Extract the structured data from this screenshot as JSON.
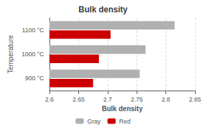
{
  "chart_data": {
    "type": "bar",
    "orientation": "horizontal",
    "title": "Bulk density",
    "xlabel": "Bulk density",
    "ylabel": "Temperature",
    "categories": [
      "900 °C",
      "1000 °C",
      "1100 °C"
    ],
    "series": [
      {
        "name": "Gray",
        "color": "#b0b0b0",
        "values": [
          2.755,
          2.765,
          2.815
        ]
      },
      {
        "name": "Red",
        "color": "#cc0000",
        "values": [
          2.675,
          2.685,
          2.705
        ]
      }
    ],
    "xlim": [
      2.6,
      2.85
    ],
    "xticks": [
      2.6,
      2.65,
      2.7,
      2.75,
      2.8,
      2.85
    ],
    "grid": true,
    "legend": "bottom"
  }
}
